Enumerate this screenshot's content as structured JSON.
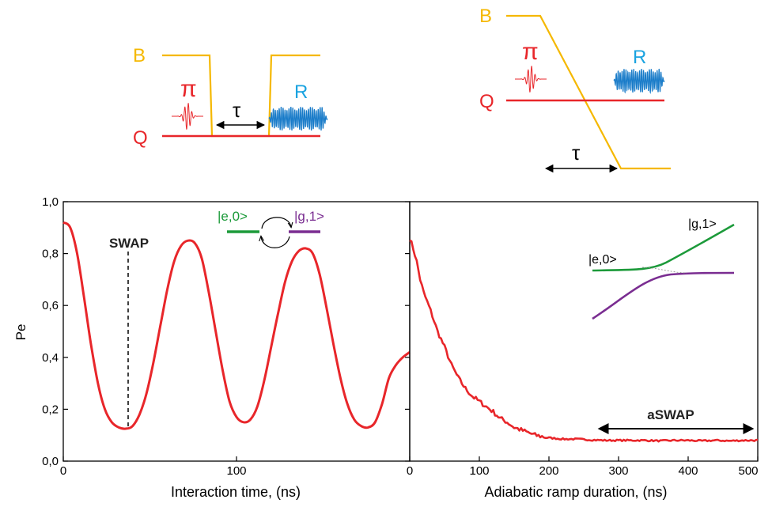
{
  "colors": {
    "flux": "#f5b800",
    "qubit": "#e8262a",
    "pulse_pi": "#e8262a",
    "pulse_r": "#1a7cc9",
    "label_r": "#1aa3e0",
    "state_e0": "#1c9a3a",
    "state_g1": "#7a2d91",
    "data": "#e8262a",
    "axis": "#000000"
  },
  "top_left_schematic": {
    "flux_label": "B",
    "qubit_label": "Q",
    "pi_label": "π",
    "readout_label": "R",
    "tau_label": "τ"
  },
  "top_right_schematic": {
    "flux_label": "B",
    "qubit_label": "Q",
    "pi_label": "π",
    "readout_label": "R",
    "tau_label": "τ"
  },
  "chart_data": [
    {
      "type": "line",
      "xlabel": "Interaction time,   (ns)",
      "ylabel": "Pe",
      "xlim": [
        0,
        200
      ],
      "ylim": [
        0,
        1.0
      ],
      "x_ticks": [
        0,
        100
      ],
      "x_tick_labels": [
        "0",
        "100"
      ],
      "y_ticks": [
        0,
        0.2,
        0.4,
        0.6,
        0.8,
        1.0
      ],
      "y_tick_labels": [
        "0,0",
        "0,2",
        "0,4",
        "0,6",
        "0,8",
        "1,0"
      ],
      "annotations": [
        {
          "text": "SWAP",
          "x": 35
        }
      ],
      "inset": {
        "state_left": "|e,0>",
        "state_right": "|g,1>"
      },
      "series": [
        {
          "x": [
            0,
            4,
            8,
            12,
            16,
            20,
            24,
            28,
            32,
            36,
            40,
            44,
            48,
            52,
            56,
            60,
            64,
            68,
            72,
            76,
            80,
            84,
            88,
            92,
            96,
            100,
            104,
            108,
            112,
            116,
            120,
            124,
            128,
            132,
            136,
            140,
            144,
            148,
            152,
            156,
            160,
            164,
            168,
            172,
            176,
            180,
            184,
            188,
            192,
            196,
            200
          ],
          "y": [
            0.92,
            0.9,
            0.8,
            0.63,
            0.45,
            0.3,
            0.2,
            0.15,
            0.13,
            0.125,
            0.135,
            0.18,
            0.26,
            0.38,
            0.52,
            0.66,
            0.77,
            0.83,
            0.85,
            0.84,
            0.78,
            0.65,
            0.5,
            0.35,
            0.23,
            0.17,
            0.15,
            0.16,
            0.21,
            0.31,
            0.44,
            0.57,
            0.69,
            0.77,
            0.81,
            0.82,
            0.8,
            0.72,
            0.59,
            0.45,
            0.32,
            0.22,
            0.16,
            0.135,
            0.13,
            0.15,
            0.22,
            0.32,
            0.37,
            0.4,
            0.42
          ]
        }
      ]
    },
    {
      "type": "line",
      "xlabel": "Adiabatic ramp duration,   (ns)",
      "xlim": [
        0,
        500
      ],
      "ylim": [
        0,
        1.0
      ],
      "x_ticks": [
        0,
        100,
        200,
        300,
        400,
        500
      ],
      "x_tick_labels": [
        "0",
        "100",
        "200",
        "300",
        "400",
        "500"
      ],
      "annotations": [
        {
          "text": "aSWAP",
          "x_range": [
            270,
            500
          ],
          "y": 0.12
        }
      ],
      "inset": {
        "state_upper": "|g,1>",
        "state_lower": "|e,0>"
      },
      "series": [
        {
          "x": [
            0,
            5,
            10,
            15,
            20,
            30,
            40,
            50,
            60,
            70,
            80,
            90,
            100,
            110,
            120,
            130,
            140,
            150,
            160,
            170,
            180,
            190,
            200,
            220,
            240,
            260,
            280,
            300,
            320,
            340,
            360,
            380,
            400,
            420,
            440,
            460,
            480,
            500
          ],
          "y": [
            0.86,
            0.82,
            0.77,
            0.7,
            0.65,
            0.58,
            0.5,
            0.44,
            0.37,
            0.32,
            0.28,
            0.25,
            0.23,
            0.21,
            0.19,
            0.165,
            0.15,
            0.13,
            0.12,
            0.11,
            0.1,
            0.095,
            0.09,
            0.085,
            0.085,
            0.082,
            0.08,
            0.08,
            0.08,
            0.08,
            0.078,
            0.08,
            0.08,
            0.078,
            0.08,
            0.078,
            0.08,
            0.08
          ]
        }
      ]
    }
  ]
}
